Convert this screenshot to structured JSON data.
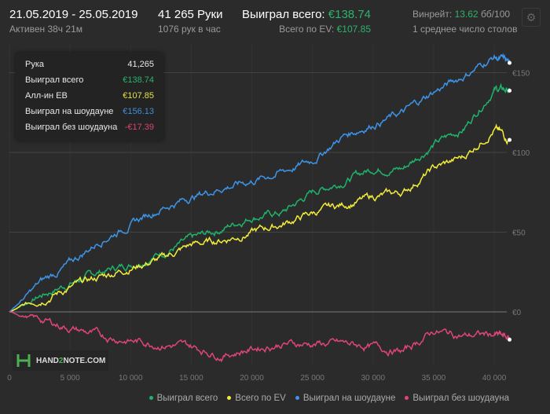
{
  "header": {
    "date_range": "21.05.2019 - 25.05.2019",
    "active": "Активен 38ч 21м",
    "hands": "41 265 Руки",
    "hands_per_hour": "1076 рук в час",
    "won_label": "Выиграл всего:",
    "won_value": "€138.74",
    "ev_label": "Всего по EV:",
    "ev_value": "€107.85",
    "winrate_label": "Винрейт:",
    "winrate_value": "13.62",
    "winrate_unit": "бб/100",
    "tables": "1 среднее число столов",
    "settings_icon": "gear-icon"
  },
  "tooltip": {
    "rows": [
      {
        "label": "Рука",
        "value": "41,265",
        "color": "#e8e8e8"
      },
      {
        "label": "Выиграл всего",
        "value": "€138.74",
        "color": "#2db36b"
      },
      {
        "label": "Алл-ин ЕВ",
        "value": "€107.85",
        "color": "#e6e04a"
      },
      {
        "label": "Выиграл на шоудауне",
        "value": "€156.13",
        "color": "#3d8fd9"
      },
      {
        "label": "Выиграл без шоудауна",
        "value": "-€17.39",
        "color": "#d9456f"
      }
    ]
  },
  "logo": {
    "text_a": "HAND",
    "text_b": "2",
    "text_c": "NOTE.COM"
  },
  "chart_data": {
    "type": "line",
    "xlim": [
      0,
      41265
    ],
    "ylim": [
      -30,
      160
    ],
    "x_ticks": [
      0,
      5000,
      10000,
      15000,
      20000,
      25000,
      30000,
      35000,
      40000
    ],
    "x_tick_labels": [
      "0",
      "5 000",
      "10 000",
      "15 000",
      "20 000",
      "25 000",
      "30 000",
      "35 000",
      "40 000"
    ],
    "y_ticks": [
      0,
      50,
      100,
      150
    ],
    "y_tick_labels": [
      "€0",
      "€50",
      "€100",
      "€150"
    ],
    "legend_position": "bottom-right",
    "x": [
      0,
      2500,
      5000,
      7500,
      10000,
      12500,
      15000,
      17500,
      20000,
      22500,
      25000,
      27500,
      30000,
      32500,
      35000,
      37500,
      40000,
      41265
    ],
    "series": [
      {
        "name": "Выиграл всего",
        "color": "#1fb36b",
        "values": [
          0,
          10,
          18,
          25,
          30,
          37,
          45,
          52,
          60,
          62,
          75,
          82,
          90,
          90,
          105,
          115,
          140,
          138.74
        ]
      },
      {
        "name": "Всего по EV",
        "color": "#f2ec3a",
        "values": [
          0,
          8,
          15,
          22,
          28,
          33,
          42,
          45,
          50,
          55,
          62,
          67,
          72,
          75,
          90,
          97,
          115,
          107.85
        ]
      },
      {
        "name": "Выиграл на шоудауне",
        "color": "#3d94e8",
        "values": [
          0,
          18,
          30,
          45,
          55,
          65,
          72,
          78,
          82,
          88,
          95,
          110,
          118,
          125,
          138,
          148,
          160,
          156.13
        ]
      },
      {
        "name": "Выиграл без шоудауна",
        "color": "#e0457a",
        "values": [
          0,
          -5,
          -10,
          -15,
          -18,
          -20,
          -22,
          -27,
          -23,
          -20,
          -20,
          -20,
          -22,
          -25,
          -12,
          -15,
          -14,
          -17.39
        ]
      }
    ]
  }
}
